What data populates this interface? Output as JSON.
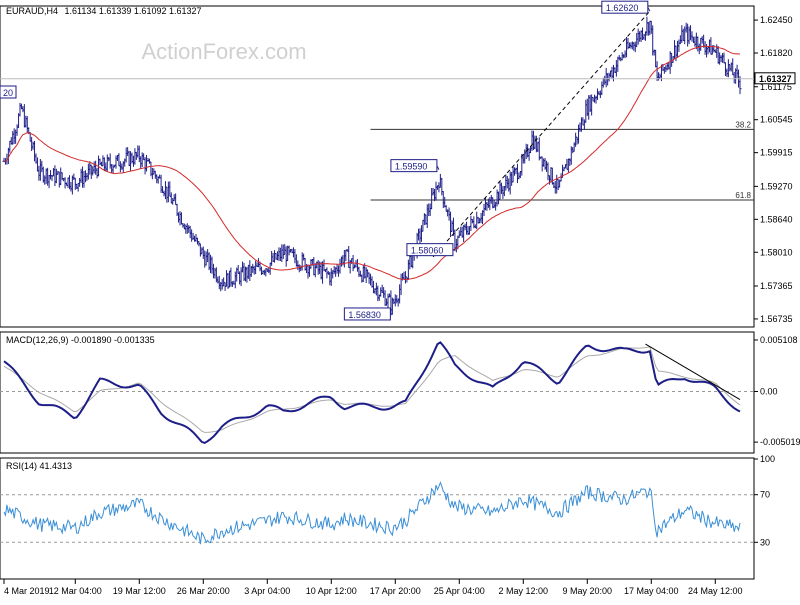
{
  "header": {
    "symbol": "EURAUD,H4",
    "ohlc": "1.61134 1.61339 1.61092 1.61327"
  },
  "watermark": "ActionForex.com",
  "colors": {
    "candle": "#1d1e87",
    "sma": "#d42a2a",
    "macd_line": "#1d1e87",
    "signal_line": "#a9a9a9",
    "rsi_line": "#3b8fd6",
    "grid_frame": "#000000",
    "fib_line": "#333333",
    "trend_line": "#000000",
    "price_box": "#d8dbe8"
  },
  "chart_data": [
    {
      "type": "candlestick",
      "panel": "price",
      "ylim": [
        1.566,
        1.627
      ],
      "y_ticks": [
        "1.62450",
        "1.61820",
        "1.61175",
        "1.60545",
        "1.59915",
        "1.59270",
        "1.58640",
        "1.58010",
        "1.57365",
        "1.56735"
      ],
      "y_tick_values": [
        1.6245,
        1.6182,
        1.61175,
        1.60545,
        1.59915,
        1.5927,
        1.5864,
        1.5801,
        1.57365,
        1.56735
      ],
      "current_price": "1.61327",
      "current_value": 1.61327,
      "left_edge_label": "20",
      "swing_labels": [
        {
          "text": "1.62620",
          "value": 1.6262,
          "date": "17 May 00:00"
        },
        {
          "text": "1.59590",
          "value": 1.5959,
          "date": "22 Apr 20:00"
        },
        {
          "text": "1.58060",
          "value": 1.5806,
          "date": "24 Apr 16:00"
        },
        {
          "text": "1.56830",
          "value": 1.5683,
          "date": "17 Apr 12:00"
        }
      ],
      "fib_levels": [
        {
          "label": "38.2",
          "value": 1.6036,
          "from_date": "15 Apr 00:00"
        },
        {
          "label": "61.8",
          "value": 1.5901,
          "from_date": "15 Apr 00:00"
        }
      ],
      "trendline": {
        "from": {
          "date": "22 Apr 04:00",
          "value": 1.5792
        },
        "to": {
          "date": "17 May 00:00",
          "value": 1.6262
        }
      },
      "sma_period": 55,
      "candles_anchor": [
        {
          "date": "4 Mar 2019",
          "value": 1.5975
        },
        {
          "date": "6 Mar 00:00",
          "value": 1.6075
        },
        {
          "date": "8 Mar 00:00",
          "value": 1.5955
        },
        {
          "date": "12 Mar 04:00",
          "value": 1.5935
        },
        {
          "date": "15 Mar 00:00",
          "value": 1.5965
        },
        {
          "date": "19 Mar 12:00",
          "value": 1.5985
        },
        {
          "date": "22 Mar 00:00",
          "value": 1.5935
        },
        {
          "date": "26 Mar 20:00",
          "value": 1.5795
        },
        {
          "date": "29 Mar 00:00",
          "value": 1.5745
        },
        {
          "date": "3 Apr 04:00",
          "value": 1.5775
        },
        {
          "date": "5 Apr 00:00",
          "value": 1.58
        },
        {
          "date": "10 Apr 12:00",
          "value": 1.5755
        },
        {
          "date": "12 Apr 00:00",
          "value": 1.5795
        },
        {
          "date": "17 Apr 12:00",
          "value": 1.57
        },
        {
          "date": "19 Apr 00:00",
          "value": 1.5755
        },
        {
          "date": "22 Apr 20:00",
          "value": 1.594
        },
        {
          "date": "24 Apr 16:00",
          "value": 1.582
        },
        {
          "date": "29 Apr 00:00",
          "value": 1.59
        },
        {
          "date": "2 May 12:00",
          "value": 1.597
        },
        {
          "date": "3 May 12:00",
          "value": 1.602
        },
        {
          "date": "6 May 12:00",
          "value": 1.592
        },
        {
          "date": "9 May 20:00",
          "value": 1.608
        },
        {
          "date": "14 May 00:00",
          "value": 1.618
        },
        {
          "date": "17 May 00:00",
          "value": 1.624
        },
        {
          "date": "17 May 20:00",
          "value": 1.613
        },
        {
          "date": "21 May 00:00",
          "value": 1.622
        },
        {
          "date": "23 May 00:00",
          "value": 1.62
        },
        {
          "date": "24 May 12:00",
          "value": 1.6185
        },
        {
          "date": "27 May 08:00",
          "value": 1.6125
        }
      ]
    },
    {
      "type": "line",
      "panel": "macd",
      "title": "MACD(12,26,9) -0.001890 -0.001335",
      "ylim": [
        -0.006,
        0.0058
      ],
      "y_ticks": [
        "0.005108",
        "0.00",
        "-0.005019"
      ],
      "y_tick_values": [
        0.005108,
        0.0,
        -0.005019
      ],
      "series": [
        {
          "role": "macd",
          "x": [
            "4 Mar 2019",
            "8 Mar 00:00",
            "12 Mar 04:00",
            "15 Mar 00:00",
            "19 Mar 12:00",
            "22 Mar 00:00",
            "26 Mar 20:00",
            "29 Mar 00:00",
            "3 Apr 04:00",
            "5 Apr 00:00",
            "10 Apr 12:00",
            "12 Apr 00:00",
            "17 Apr 12:00",
            "19 Apr 00:00",
            "22 Apr 20:00",
            "24 Apr 16:00",
            "29 Apr 00:00",
            "2 May 12:00",
            "6 May 12:00",
            "9 May 20:00",
            "14 May 00:00",
            "17 May 00:00",
            "17 May 20:00",
            "21 May 00:00",
            "24 May 12:00",
            "27 May 08:00"
          ],
          "values": [
            0.003,
            -0.001,
            -0.0025,
            0.001,
            0.0005,
            -0.002,
            -0.005,
            -0.0035,
            -0.0015,
            -0.002,
            -0.0005,
            -0.0015,
            -0.0015,
            -0.0012,
            0.005,
            0.0025,
            0.0002,
            0.003,
            0.001,
            0.0045,
            0.004,
            0.0042,
            0.0005,
            0.0015,
            0.0003,
            -0.0019
          ]
        },
        {
          "role": "signal",
          "x": [
            "4 Mar 2019",
            "8 Mar 00:00",
            "12 Mar 04:00",
            "15 Mar 00:00",
            "19 Mar 12:00",
            "22 Mar 00:00",
            "26 Mar 20:00",
            "29 Mar 00:00",
            "3 Apr 04:00",
            "5 Apr 00:00",
            "10 Apr 12:00",
            "12 Apr 00:00",
            "17 Apr 12:00",
            "19 Apr 00:00",
            "22 Apr 20:00",
            "24 Apr 16:00",
            "29 Apr 00:00",
            "2 May 12:00",
            "6 May 12:00",
            "9 May 20:00",
            "14 May 00:00",
            "17 May 00:00",
            "17 May 20:00",
            "21 May 00:00",
            "24 May 12:00",
            "27 May 08:00"
          ],
          "values": [
            0.0025,
            0.0,
            -0.002,
            0.0,
            0.0008,
            -0.001,
            -0.004,
            -0.0038,
            -0.002,
            -0.0018,
            -0.0008,
            -0.0012,
            -0.0014,
            -0.0013,
            0.003,
            0.0035,
            0.001,
            0.0022,
            0.0015,
            0.0035,
            0.0042,
            0.0045,
            0.002,
            0.0015,
            0.0008,
            -0.0013
          ]
        }
      ],
      "trendline": {
        "from": {
          "date": "16 May 12:00",
          "value": 0.0047
        },
        "to": {
          "date": "27 May 08:00",
          "value": -0.0008
        }
      }
    },
    {
      "type": "line",
      "panel": "rsi",
      "title": "RSI(14) 41.4313",
      "ylim": [
        0,
        100
      ],
      "y_ticks": [
        "100",
        "70",
        "30"
      ],
      "y_tick_values": [
        100,
        70,
        30
      ],
      "series": [
        {
          "role": "rsi",
          "x": [
            "4 Mar 2019",
            "8 Mar 00:00",
            "12 Mar 04:00",
            "15 Mar 00:00",
            "19 Mar 12:00",
            "22 Mar 00:00",
            "26 Mar 20:00",
            "29 Mar 00:00",
            "3 Apr 04:00",
            "5 Apr 00:00",
            "10 Apr 12:00",
            "12 Apr 00:00",
            "17 Apr 12:00",
            "19 Apr 00:00",
            "22 Apr 20:00",
            "24 Apr 16:00",
            "29 Apr 00:00",
            "2 May 12:00",
            "6 May 12:00",
            "9 May 20:00",
            "14 May 00:00",
            "17 May 00:00",
            "17 May 20:00",
            "21 May 00:00",
            "24 May 12:00",
            "27 May 08:00"
          ],
          "values": [
            58,
            45,
            42,
            55,
            62,
            50,
            32,
            40,
            48,
            52,
            45,
            50,
            42,
            48,
            78,
            60,
            55,
            66,
            55,
            72,
            66,
            74,
            40,
            57,
            46,
            41.43
          ]
        }
      ]
    }
  ],
  "x_axis": {
    "labels": [
      "4 Mar 2019",
      "12 Mar 04:00",
      "19 Mar 12:00",
      "26 Mar 20:00",
      "3 Apr 04:00",
      "10 Apr 12:00",
      "17 Apr 20:00",
      "25 Apr 04:00",
      "2 May 12:00",
      "9 May 20:00",
      "17 May 04:00",
      "24 May 12:00"
    ]
  }
}
